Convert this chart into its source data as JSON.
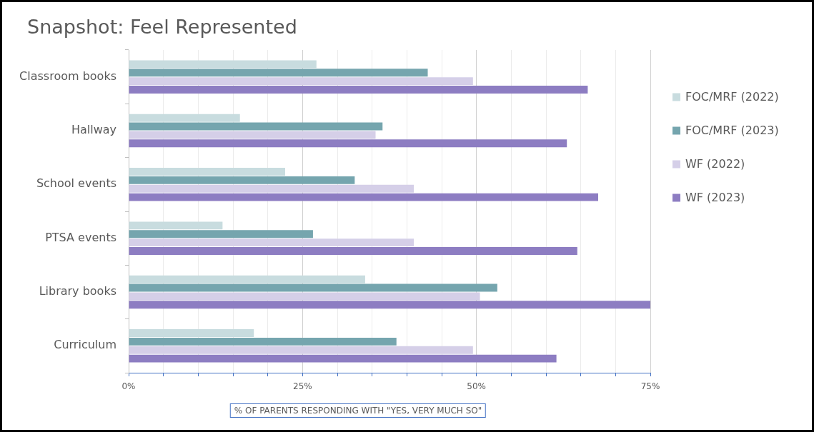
{
  "chart_data": {
    "type": "bar",
    "orientation": "horizontal",
    "title": "Snapshot: Feel Represented",
    "xlabel": "% OF PARENTS RESPONDING WITH \"YES, VERY MUCH SO\"",
    "categories": [
      "Classroom books",
      "Hallway",
      "School events",
      "PTSA events",
      "Library books",
      "Curriculum"
    ],
    "series": [
      {
        "name": "FOC/MRF (2022)",
        "color": "#c8dcdf",
        "values": [
          27,
          16,
          22.5,
          13.5,
          34,
          18
        ]
      },
      {
        "name": "FOC/MRF (2023)",
        "color": "#75a5ae",
        "values": [
          43,
          36.5,
          32.5,
          26.5,
          53,
          38.5
        ]
      },
      {
        "name": "WF (2022)",
        "color": "#d5cfe8",
        "values": [
          49.5,
          35.5,
          41,
          41,
          50.5,
          49.5
        ]
      },
      {
        "name": "WF (2023)",
        "color": "#8d7dc2",
        "values": [
          66,
          63,
          67.5,
          64.5,
          75,
          61.5
        ]
      }
    ],
    "xlim": [
      0,
      75
    ],
    "xticks": [
      {
        "value": 0,
        "label": "0%"
      },
      {
        "value": 5,
        "label": null
      },
      {
        "value": 10,
        "label": null
      },
      {
        "value": 15,
        "label": null
      },
      {
        "value": 20,
        "label": null
      },
      {
        "value": 25,
        "label": "25%"
      },
      {
        "value": 30,
        "label": null
      },
      {
        "value": 35,
        "label": null
      },
      {
        "value": 40,
        "label": null
      },
      {
        "value": 45,
        "label": null
      },
      {
        "value": 50,
        "label": "50%"
      },
      {
        "value": 55,
        "label": null
      },
      {
        "value": 60,
        "label": null
      },
      {
        "value": 65,
        "label": null
      },
      {
        "value": 70,
        "label": null
      },
      {
        "value": 75,
        "label": "75%"
      }
    ],
    "grid": "x",
    "legend": "right"
  }
}
